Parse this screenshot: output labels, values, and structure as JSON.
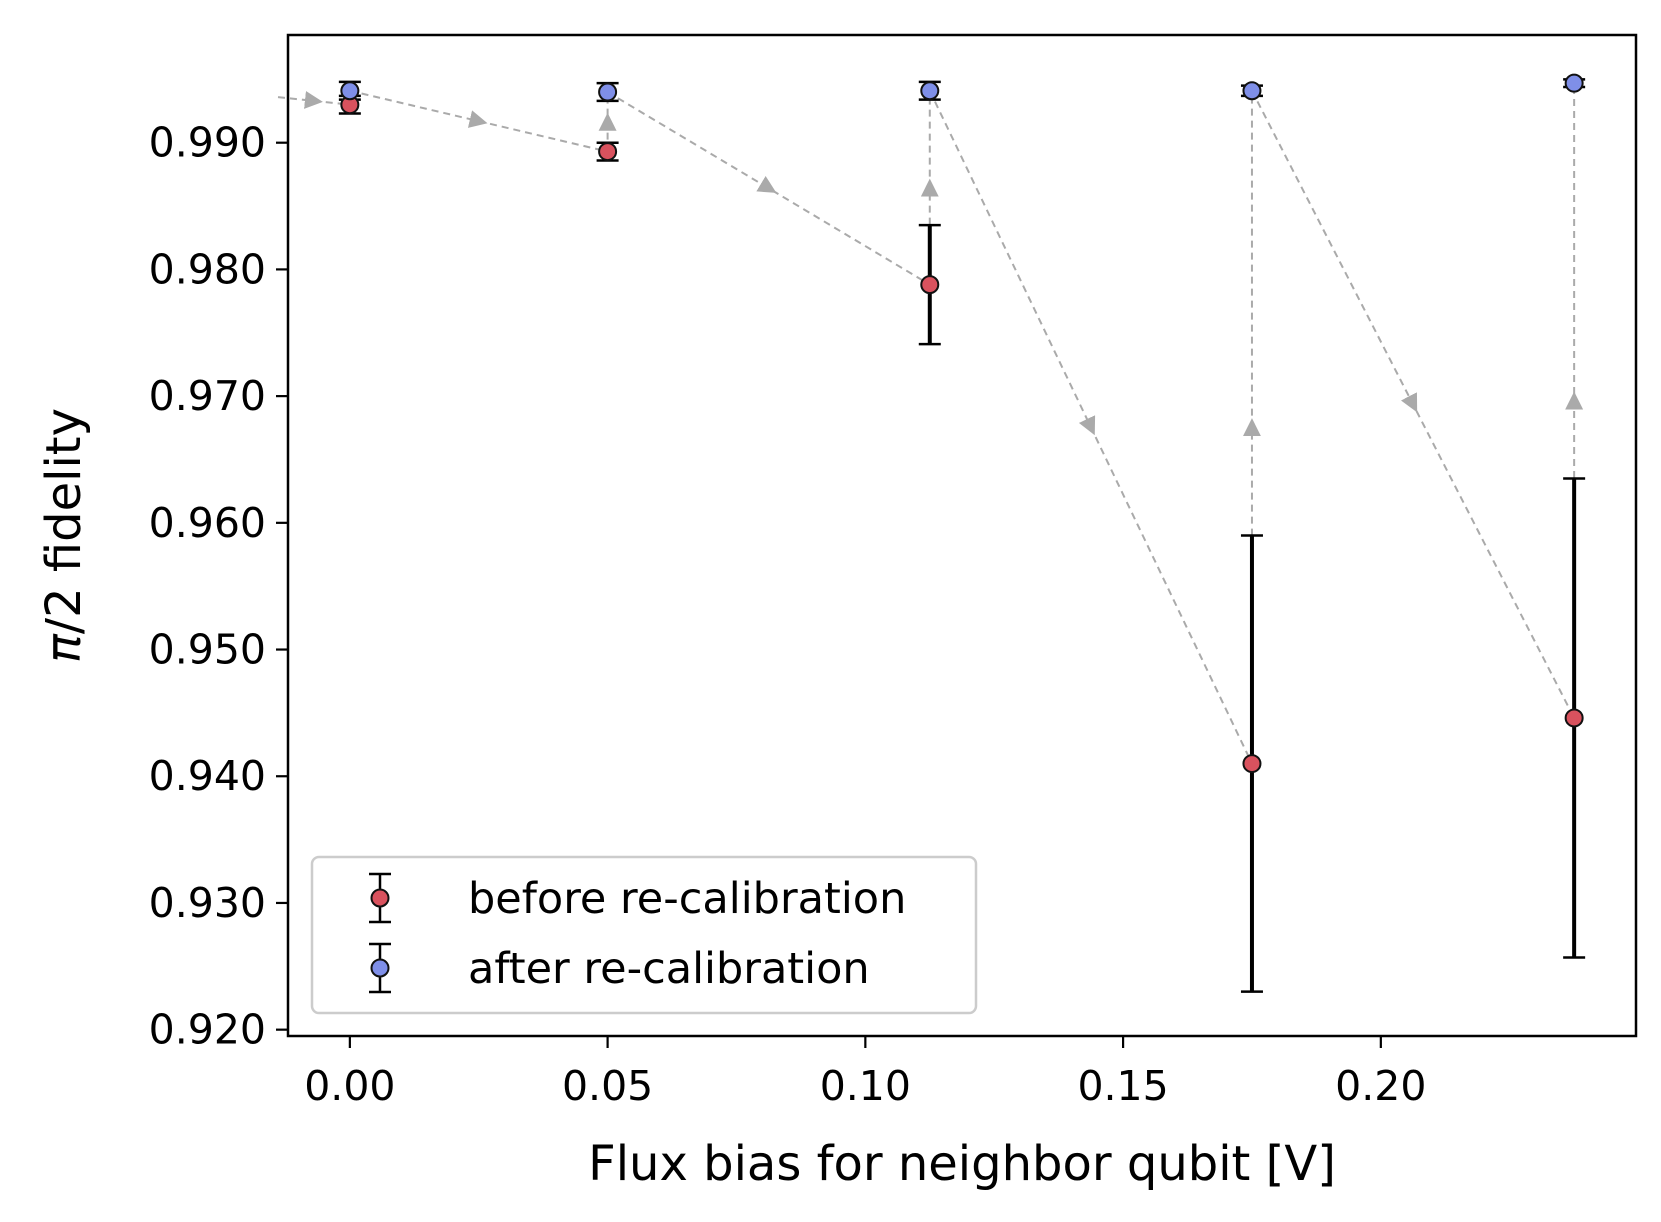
{
  "chart_data": {
    "type": "scatter",
    "xlabel": "Flux bias for neighbor qubit [V]",
    "ylabel_symbol": "π",
    "ylabel_rest": "/2 fidelity",
    "xlim": [
      -0.012,
      0.2495
    ],
    "ylim": [
      0.9195,
      0.9985
    ],
    "x_ticks": [
      0.0,
      0.05,
      0.1,
      0.15,
      0.2
    ],
    "x_tick_labels": [
      "0.00",
      "0.05",
      "0.10",
      "0.15",
      "0.20"
    ],
    "y_ticks": [
      0.92,
      0.93,
      0.94,
      0.95,
      0.96,
      0.97,
      0.98,
      0.99
    ],
    "y_tick_labels": [
      "0.920",
      "0.930",
      "0.940",
      "0.950",
      "0.960",
      "0.970",
      "0.980",
      "0.990"
    ],
    "grid": false,
    "legend_position": "lower-left",
    "series": [
      {
        "name": "before re-calibration",
        "color": "#d9525e",
        "x": [
          0.0,
          0.05,
          0.1125,
          0.175,
          0.2375
        ],
        "y": [
          0.993,
          0.9893,
          0.9788,
          0.941,
          0.9446
        ],
        "yerr": [
          0.0007,
          0.0007,
          0.0047,
          0.018,
          0.0189
        ]
      },
      {
        "name": "after re-calibration",
        "color": "#7f8fe8",
        "x": [
          0.0,
          0.05,
          0.1125,
          0.175,
          0.2375
        ],
        "y": [
          0.9941,
          0.994,
          0.9941,
          0.9941,
          0.9947
        ],
        "yerr": [
          0.0007,
          0.0007,
          0.0007,
          0.0004,
          0.0003
        ]
      }
    ],
    "colors": {
      "arrow": "#aaaaaa",
      "errorbar": "#000000",
      "marker_edge": "#111111"
    }
  }
}
